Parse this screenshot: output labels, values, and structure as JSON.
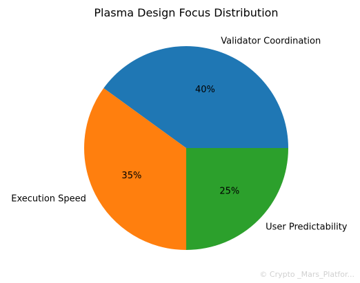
{
  "chart_data": {
    "type": "pie",
    "title": "Plasma Design Focus Distribution",
    "labels": [
      "Validator Coordination",
      "Execution Speed",
      "User Predictability"
    ],
    "values": [
      40,
      35,
      25
    ],
    "percent_labels": [
      "40%",
      "35%",
      "25%"
    ],
    "colors": [
      "#1f77b4",
      "#ff7f0e",
      "#2ca02c"
    ],
    "start_angle_deg": 0,
    "direction": "counterclockwise"
  },
  "watermark": {
    "text": "© Crypto _Mars_Platfor..."
  }
}
